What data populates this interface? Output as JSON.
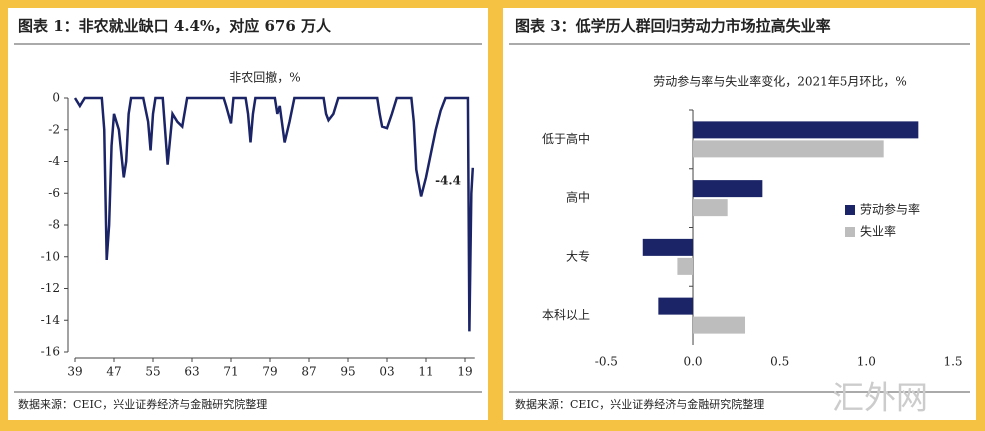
{
  "chart_data": [
    {
      "type": "line",
      "title": "图表 1：非农就业缺口 4.4%，对应 676 万人",
      "subtitle": "非农回撤，%",
      "source": "数据来源：CEIC，兴业证券经济与金融研究院整理",
      "annotation": "-4.4",
      "color": "#1a2467",
      "x": [
        1939,
        1940,
        1941,
        1944.5,
        1945,
        1945.5,
        1946,
        1946.5,
        1947,
        1948,
        1949,
        1949.5,
        1950,
        1950.5,
        1953,
        1954,
        1954.5,
        1955,
        1955.5,
        1957,
        1958,
        1959,
        1960,
        1961,
        1962,
        1969.5,
        1970,
        1971,
        1971.5,
        1974,
        1974.5,
        1975,
        1975.5,
        1976,
        1980,
        1980.5,
        1981,
        1982,
        1983,
        1984,
        1990,
        1990.5,
        1991,
        1992,
        1993,
        2001,
        2001.5,
        2002,
        2003,
        2004,
        2005,
        2008,
        2008.5,
        2009,
        2010,
        2011,
        2012,
        2013,
        2014,
        2015,
        2019.6,
        2019.9,
        2020.3,
        2020.6
      ],
      "values": [
        0,
        -0.5,
        0,
        0,
        -2,
        -10.2,
        -8,
        -3,
        -1,
        -2,
        -5,
        -4,
        -1,
        0,
        0,
        -1.5,
        -3.3,
        -1,
        0,
        0,
        -4.2,
        -1,
        -1.5,
        -1.8,
        0,
        0,
        -0.5,
        -1.6,
        0,
        0,
        -1,
        -2.8,
        -1,
        0,
        0,
        -1,
        -0.5,
        -2.8,
        -1.5,
        0,
        0,
        -1,
        -1.4,
        -1,
        0,
        0,
        -1,
        -1.8,
        -1.9,
        -1,
        0,
        0,
        -1.5,
        -4.5,
        -6.2,
        -5,
        -3.5,
        -2,
        -0.8,
        0,
        0,
        -14.7,
        -6,
        -4.4
      ],
      "xlim": [
        1939,
        2021
      ],
      "xticks": [
        {
          "value": 1939,
          "label": "39"
        },
        {
          "value": 1947,
          "label": "47"
        },
        {
          "value": 1955,
          "label": "55"
        },
        {
          "value": 1963,
          "label": "63"
        },
        {
          "value": 1971,
          "label": "71"
        },
        {
          "value": 1979,
          "label": "79"
        },
        {
          "value": 1987,
          "label": "87"
        },
        {
          "value": 1995,
          "label": "95"
        },
        {
          "value": 2003,
          "label": "03"
        },
        {
          "value": 2011,
          "label": "11"
        },
        {
          "value": 2019,
          "label": "19"
        }
      ],
      "ylim": [
        -16,
        0
      ],
      "yticks": [
        -16,
        -14,
        -12,
        -10,
        -8,
        -6,
        -4,
        -2,
        0
      ]
    },
    {
      "type": "hbar",
      "title": "图表 3：低学历人群回归劳动力市场拉高失业率",
      "subtitle": "劳动参与率与失业率变化，2021年5月环比，%",
      "source": "数据来源：CEIC，兴业证券经济与金融研究院整理",
      "categories": [
        "低于高中",
        "高中",
        "大专",
        "本科以上"
      ],
      "series": [
        {
          "name": "劳动参与率",
          "color": "#1a2467",
          "values": [
            1.3,
            0.4,
            -0.29,
            -0.2
          ]
        },
        {
          "name": "失业率",
          "color": "#bdbdbd",
          "values": [
            1.1,
            0.2,
            -0.09,
            0.3
          ]
        }
      ],
      "xlim": [
        -0.5,
        1.5
      ],
      "xticks": [
        -0.5,
        {
          "value": 0,
          "label": "0.0"
        },
        0.5,
        {
          "value": 1,
          "label": "1.0"
        },
        1.5
      ],
      "legend": "right"
    }
  ],
  "watermark": "汇外网"
}
